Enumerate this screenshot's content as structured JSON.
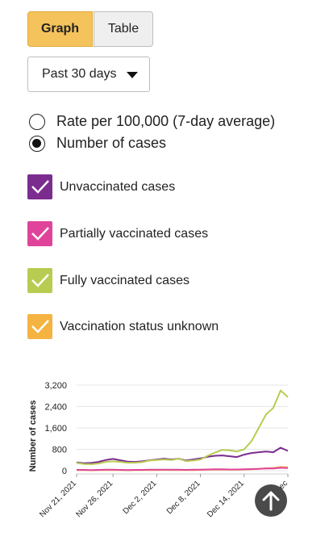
{
  "view_tabs": {
    "graph_label": "Graph",
    "table_label": "Table",
    "selected": "Graph"
  },
  "period_select": {
    "value": "Past 30 days"
  },
  "metric_options": [
    {
      "label": "Rate per 100,000 (7-day average)",
      "selected": false
    },
    {
      "label": "Number of cases",
      "selected": true
    }
  ],
  "series_toggles": [
    {
      "label": "Unvaccinated cases",
      "color": "#7b2c8f",
      "checked": true
    },
    {
      "label": "Partially vaccinated cases",
      "color": "#e0449a",
      "checked": true
    },
    {
      "label": "Fully vaccinated cases",
      "color": "#b8cc52",
      "checked": true
    },
    {
      "label": "Vaccination status unknown",
      "color": "#f5b342",
      "checked": true
    }
  ],
  "chart_data": {
    "type": "line",
    "ylabel": "Number of cases",
    "ylim": [
      0,
      3200
    ],
    "yticks": [
      "3,200",
      "2,400",
      "1,600",
      "800",
      "0"
    ],
    "xtick_labels": [
      "Nov 21, 2021",
      "Nov 26, 2021",
      "Dec 2, 2021",
      "Dec 8, 2021",
      "Dec 14, 2021",
      "Dec"
    ],
    "x": [
      "Nov 21",
      "Nov 22",
      "Nov 23",
      "Nov 24",
      "Nov 25",
      "Nov 26",
      "Nov 27",
      "Nov 28",
      "Nov 29",
      "Nov 30",
      "Dec 1",
      "Dec 2",
      "Dec 3",
      "Dec 4",
      "Dec 5",
      "Dec 6",
      "Dec 7",
      "Dec 8",
      "Dec 9",
      "Dec 10",
      "Dec 11",
      "Dec 12",
      "Dec 13",
      "Dec 14",
      "Dec 15",
      "Dec 16",
      "Dec 17",
      "Dec 18",
      "Dec 19",
      "Dec 20"
    ],
    "series": [
      {
        "name": "Unvaccinated cases",
        "color": "#7b2c8f",
        "values": [
          310,
          280,
          290,
          330,
          400,
          440,
          390,
          340,
          330,
          350,
          390,
          420,
          450,
          420,
          450,
          380,
          420,
          460,
          520,
          560,
          570,
          540,
          510,
          600,
          660,
          690,
          720,
          690,
          860,
          740
        ]
      },
      {
        "name": "Partially vaccinated cases",
        "color": "#e0449a",
        "values": [
          30,
          30,
          25,
          30,
          35,
          35,
          30,
          25,
          30,
          30,
          35,
          35,
          40,
          35,
          35,
          30,
          35,
          40,
          45,
          50,
          50,
          45,
          45,
          55,
          60,
          70,
          80,
          85,
          110,
          100
        ]
      },
      {
        "name": "Fully vaccinated cases",
        "color": "#b8cc52",
        "values": [
          290,
          250,
          240,
          270,
          330,
          350,
          330,
          300,
          300,
          320,
          380,
          400,
          420,
          400,
          450,
          360,
          380,
          420,
          560,
          680,
          780,
          760,
          720,
          800,
          1100,
          1600,
          2100,
          2350,
          3000,
          2750
        ]
      },
      {
        "name": "Vaccination status unknown",
        "color": "#f5b342",
        "values": [
          20,
          20,
          15,
          20,
          20,
          25,
          20,
          15,
          20,
          20,
          25,
          25,
          30,
          25,
          25,
          20,
          25,
          30,
          35,
          40,
          40,
          35,
          35,
          45,
          55,
          70,
          90,
          100,
          140,
          130
        ]
      }
    ]
  },
  "scroll_top_button": {
    "icon": "arrow-up-icon"
  }
}
